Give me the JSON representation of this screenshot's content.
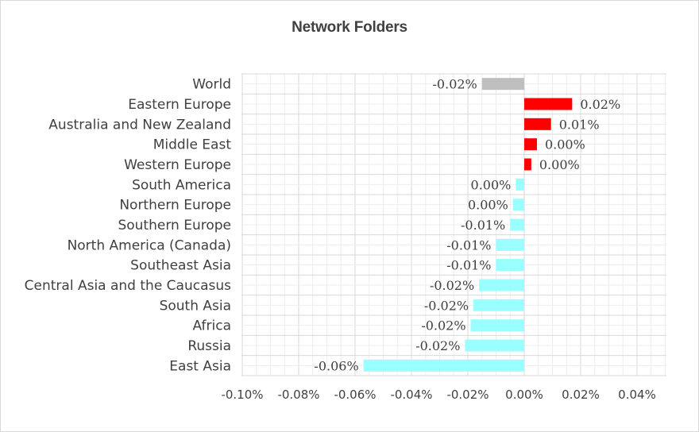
{
  "chart_data": {
    "type": "bar",
    "orientation": "horizontal",
    "title": "Network Folders",
    "xlabel": "",
    "ylabel": "",
    "xlim": [
      -0.1,
      0.05
    ],
    "x_ticks": [
      "-0.10%",
      "-0.08%",
      "-0.06%",
      "-0.04%",
      "-0.02%",
      "0.00%",
      "0.02%",
      "0.04%"
    ],
    "grid": true,
    "legend": "none",
    "categories": [
      "World",
      "Eastern Europe",
      "Australia and New Zealand",
      "Middle East",
      "Western Europe",
      "South America",
      "Northern Europe",
      "Southern Europe",
      "North America (Canada)",
      "Southeast Asia",
      "Central Asia and the Caucasus",
      "South Asia",
      "Africa",
      "Russia",
      "East Asia"
    ],
    "values": [
      -0.015,
      0.017,
      0.0095,
      0.0045,
      0.0025,
      -0.003,
      -0.004,
      -0.005,
      -0.01,
      -0.01,
      -0.016,
      -0.018,
      -0.019,
      -0.021,
      -0.057
    ],
    "data_labels": [
      "-0.02%",
      "0.02%",
      "0.01%",
      "0.00%",
      "0.00%",
      "0.00%",
      "0.00%",
      "-0.01%",
      "-0.01%",
      "-0.01%",
      "-0.02%",
      "-0.02%",
      "-0.02%",
      "-0.02%",
      "-0.06%"
    ],
    "colors": {
      "world": "#bfbfbf",
      "positive": "#ff0000",
      "negative": "#99ffff",
      "grid": "#d9d9d9",
      "text": "#404040"
    }
  }
}
